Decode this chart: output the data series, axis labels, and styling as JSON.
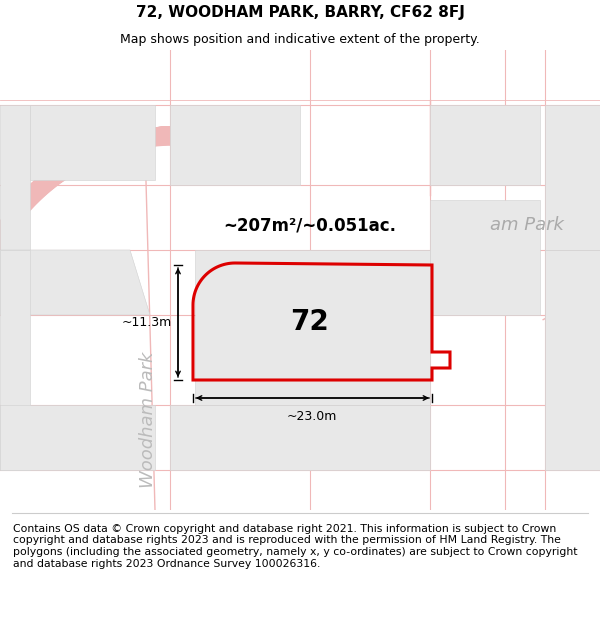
{
  "title_line1": "72, WOODHAM PARK, BARRY, CF62 8FJ",
  "title_line2": "Map shows position and indicative extent of the property.",
  "footer_text": "Contains OS data © Crown copyright and database right 2021. This information is subject to Crown copyright and database rights 2023 and is reproduced with the permission of HM Land Registry. The polygons (including the associated geometry, namely x, y co-ordinates) are subject to Crown copyright and database rights 2023 Ordnance Survey 100026316.",
  "area_label": "~207m²/~0.051ac.",
  "width_label": "~23.0m",
  "height_label": "~11.3m",
  "number_label": "72",
  "road_label": "Woodham Park",
  "woodham_park_label": "am Park",
  "map_bg": "#ffffff",
  "block_color": "#e8e8e8",
  "block_edge": "#d0d0d0",
  "road_color": "#f5c8c8",
  "grid_color": "#f0b8b8",
  "plot_fill": "none",
  "plot_edge": "#dd0000",
  "plot_edge_width": 2.2,
  "title_fontsize": 11,
  "subtitle_fontsize": 9,
  "footer_fontsize": 7.8,
  "number_fontsize": 20,
  "road_label_fontsize": 13,
  "area_label_fontsize": 12,
  "dim_fontsize": 9
}
